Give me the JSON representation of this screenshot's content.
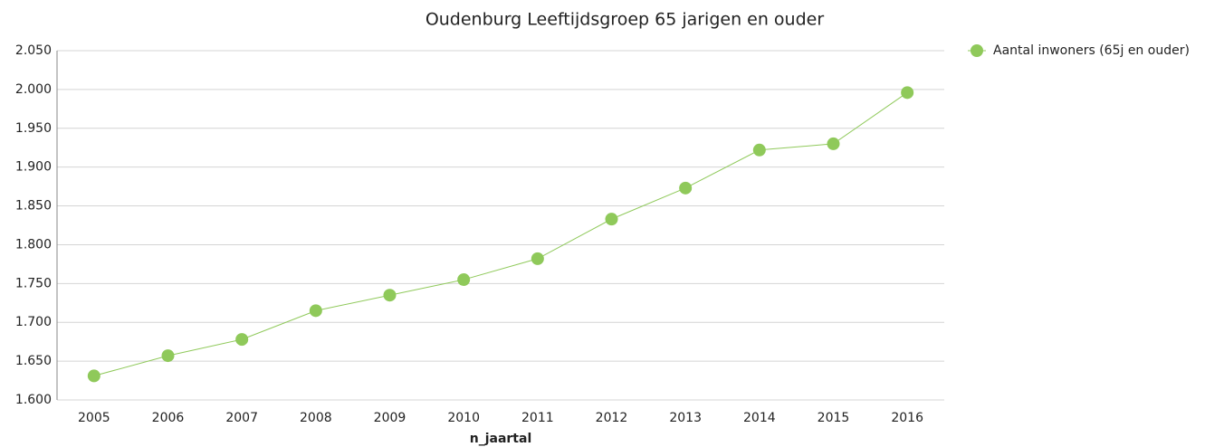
{
  "chart_data": {
    "type": "line",
    "title": "Oudenburg  Leeftijdsgroep 65 jarigen en ouder",
    "x_label": "n_jaartal",
    "categories": [
      "2005",
      "2006",
      "2007",
      "2008",
      "2009",
      "2010",
      "2011",
      "2012",
      "2013",
      "2014",
      "2015",
      "2016"
    ],
    "series": [
      {
        "name": "Aantal inwoners (65j en ouder)",
        "color": "#8fc95a",
        "values": [
          1631,
          1657,
          1678,
          1715,
          1735,
          1755,
          1782,
          1833,
          1873,
          1922,
          1930,
          1996
        ]
      }
    ],
    "ylim": [
      1600,
      2050
    ],
    "yticks": [
      {
        "value": 1600,
        "label": "1.600"
      },
      {
        "value": 1650,
        "label": "1.650"
      },
      {
        "value": 1700,
        "label": "1.700"
      },
      {
        "value": 1750,
        "label": "1.750"
      },
      {
        "value": 1800,
        "label": "1.800"
      },
      {
        "value": 1850,
        "label": "1.850"
      },
      {
        "value": 1900,
        "label": "1.900"
      },
      {
        "value": 1950,
        "label": "1.950"
      },
      {
        "value": 2000,
        "label": "2.000"
      },
      {
        "value": 2050,
        "label": "2.050"
      }
    ],
    "grid": true,
    "legend": "right"
  }
}
